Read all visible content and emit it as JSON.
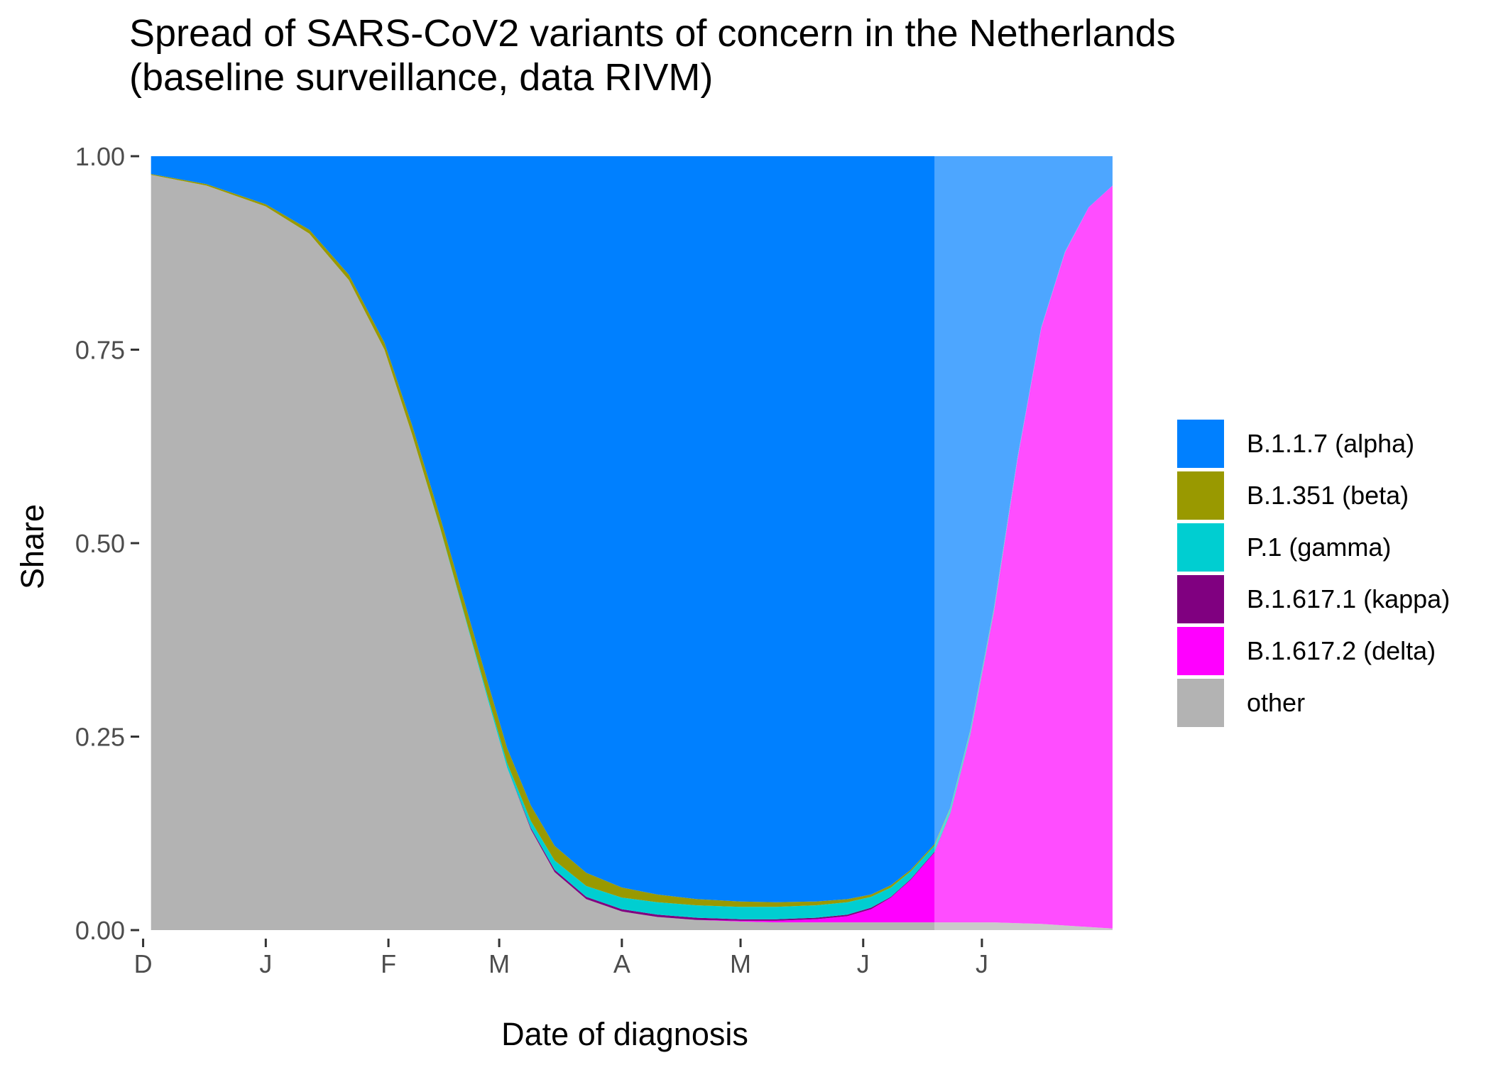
{
  "title_line1": "Spread of SARS-CoV2 variants of concern in the Netherlands",
  "title_line2": "(baseline surveillance, data RIVM)",
  "chart_data": {
    "type": "area",
    "stacked": true,
    "normalized": true,
    "xlabel": "Date of diagnosis",
    "ylabel": "Share",
    "x_axis": "dates, one tick per month",
    "x_ticks": [
      {
        "date": "2020-12-01",
        "label": "D"
      },
      {
        "date": "2021-01-01",
        "label": "J"
      },
      {
        "date": "2021-02-01",
        "label": "F"
      },
      {
        "date": "2021-03-01",
        "label": "M"
      },
      {
        "date": "2021-04-01",
        "label": "A"
      },
      {
        "date": "2021-05-01",
        "label": "M"
      },
      {
        "date": "2021-06-01",
        "label": "J"
      },
      {
        "date": "2021-07-01",
        "label": "J"
      }
    ],
    "xlim": [
      "2020-11-30",
      "2021-08-05"
    ],
    "ylim": [
      0,
      1
    ],
    "y_ticks": [
      "0.00",
      "0.25",
      "0.50",
      "0.75",
      "1.00"
    ],
    "grid": false,
    "legend_position": "right",
    "forecast_start": "2021-06-19",
    "x": [
      "2020-12-03",
      "2020-12-17",
      "2021-01-01",
      "2021-01-12",
      "2021-01-22",
      "2021-01-31",
      "2021-02-07",
      "2021-02-14",
      "2021-02-20",
      "2021-02-26",
      "2021-03-03",
      "2021-03-09",
      "2021-03-15",
      "2021-03-23",
      "2021-04-01",
      "2021-04-10",
      "2021-04-20",
      "2021-05-01",
      "2021-05-10",
      "2021-05-20",
      "2021-05-28",
      "2021-06-03",
      "2021-06-08",
      "2021-06-13",
      "2021-06-19",
      "2021-06-23",
      "2021-06-28",
      "2021-07-04",
      "2021-07-10",
      "2021-07-16",
      "2021-07-22",
      "2021-07-28",
      "2021-08-03"
    ],
    "series": [
      {
        "name": "other",
        "color": "#B3B3B3",
        "values": [
          0.976,
          0.962,
          0.935,
          0.9,
          0.84,
          0.75,
          0.64,
          0.52,
          0.41,
          0.3,
          0.21,
          0.13,
          0.075,
          0.04,
          0.024,
          0.017,
          0.013,
          0.011,
          0.01,
          0.01,
          0.01,
          0.01,
          0.01,
          0.01,
          0.01,
          0.01,
          0.01,
          0.01,
          0.009,
          0.008,
          0.006,
          0.004,
          0.002
        ]
      },
      {
        "name": "B.1.617.2 (delta)",
        "color": "#FF00FF",
        "values": [
          0,
          0,
          0,
          0,
          0,
          0,
          0,
          0,
          0,
          0,
          0,
          0,
          0,
          0,
          0,
          0,
          0,
          0.001,
          0.002,
          0.004,
          0.008,
          0.017,
          0.032,
          0.055,
          0.09,
          0.14,
          0.24,
          0.4,
          0.6,
          0.77,
          0.87,
          0.93,
          0.96
        ]
      },
      {
        "name": "B.1.617.1 (kappa)",
        "color": "#800080",
        "values": [
          0,
          0,
          0,
          0,
          0,
          0,
          0,
          0,
          0,
          0,
          0,
          0.002,
          0.003,
          0.003,
          0.003,
          0.003,
          0.003,
          0.002,
          0.002,
          0.002,
          0.002,
          0.002,
          0.001,
          0.001,
          0.001,
          0.001,
          0.001,
          0.001,
          0,
          0,
          0,
          0,
          0
        ]
      },
      {
        "name": "P.1 (gamma)",
        "color": "#00CED1",
        "values": [
          0,
          0,
          0,
          0,
          0,
          0,
          0,
          0.001,
          0.002,
          0.004,
          0.006,
          0.009,
          0.012,
          0.014,
          0.015,
          0.016,
          0.016,
          0.016,
          0.016,
          0.016,
          0.016,
          0.014,
          0.012,
          0.01,
          0.008,
          0.006,
          0.005,
          0.003,
          0.002,
          0.001,
          0.001,
          0,
          0
        ]
      },
      {
        "name": "B.1.351 (beta)",
        "color": "#999900",
        "values": [
          0.001,
          0.002,
          0.003,
          0.005,
          0.007,
          0.009,
          0.012,
          0.014,
          0.016,
          0.018,
          0.019,
          0.02,
          0.019,
          0.017,
          0.013,
          0.01,
          0.008,
          0.007,
          0.006,
          0.005,
          0.004,
          0.003,
          0.003,
          0.002,
          0.002,
          0.001,
          0.001,
          0.001,
          0,
          0,
          0,
          0,
          0
        ]
      },
      {
        "name": "B.1.1.7 (alpha)",
        "color": "#0080FF",
        "values": [
          0.023,
          0.036,
          0.062,
          0.095,
          0.153,
          0.241,
          0.348,
          0.465,
          0.572,
          0.678,
          0.765,
          0.839,
          0.891,
          0.926,
          0.945,
          0.954,
          0.96,
          0.963,
          0.964,
          0.963,
          0.96,
          0.954,
          0.942,
          0.922,
          0.889,
          0.842,
          0.743,
          0.585,
          0.389,
          0.221,
          0.123,
          0.066,
          0.038
        ]
      }
    ]
  },
  "legend": [
    {
      "label": "B.1.1.7 (alpha)",
      "color": "#0080FF"
    },
    {
      "label": "B.1.351 (beta)",
      "color": "#999900"
    },
    {
      "label": "P.1 (gamma)",
      "color": "#00CED1"
    },
    {
      "label": "B.1.617.1 (kappa)",
      "color": "#800080"
    },
    {
      "label": "B.1.617.2 (delta)",
      "color": "#FF00FF"
    },
    {
      "label": "other",
      "color": "#B3B3B3"
    }
  ]
}
